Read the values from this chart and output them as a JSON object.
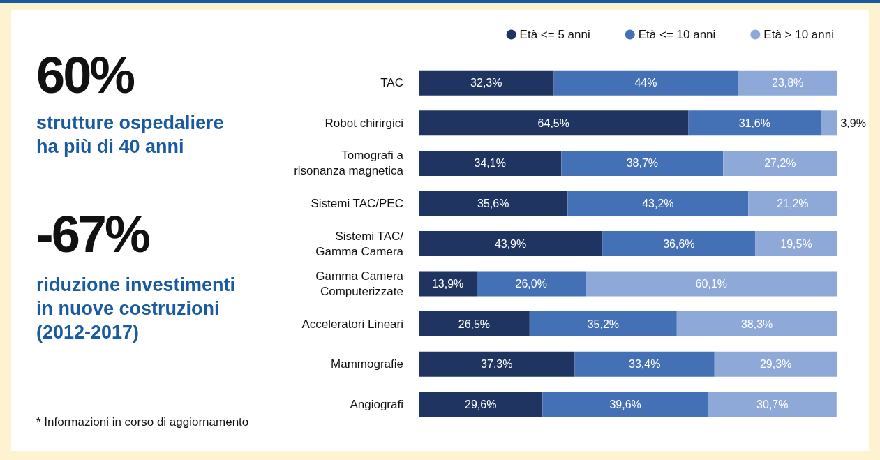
{
  "chart_data": {
    "type": "bar",
    "orientation": "horizontal",
    "stacked": true,
    "legend": "top right",
    "categories": [
      "TAC",
      "Robot chirirgici",
      "Tomografi a\nrisonanza magnetica",
      "Sistemi TAC/PEC",
      "Sistemi TAC/\nGamma Camera",
      "Gamma Camera\nComputerizzate",
      "Acceleratori Lineari",
      "Mammografie",
      "Angiografi"
    ],
    "series": [
      {
        "name": "Età <= 5 anni",
        "color": "#1f3461",
        "values": [
          32.3,
          64.5,
          34.1,
          35.6,
          43.9,
          13.9,
          26.5,
          37.3,
          29.6
        ],
        "value_labels": [
          "32,3%",
          "64,5%",
          "34,1%",
          "35,6%",
          "43,9%",
          "13,9%",
          "26,5%",
          "37,3%",
          "29,6%"
        ]
      },
      {
        "name": "Età <= 10 anni",
        "color": "#4470b5",
        "values": [
          44,
          31.6,
          38.7,
          43.2,
          36.6,
          26.0,
          35.2,
          33.4,
          39.6
        ],
        "value_labels": [
          "44%",
          "31,6%",
          "38,7%",
          "43,2%",
          "36,6%",
          "26,0%",
          "35,2%",
          "33,4%",
          "39,6%"
        ]
      },
      {
        "name": "Età > 10 anni",
        "color": "#8ea9d8",
        "values": [
          23.8,
          3.9,
          27.2,
          21.2,
          19.5,
          60.1,
          38.3,
          29.3,
          30.7
        ],
        "value_labels": [
          "23,8%",
          "3,9%",
          "27,2%",
          "21,2%",
          "19,5%",
          "60,1%",
          "38,3%",
          "29,3%",
          "30,7%"
        ]
      }
    ],
    "annotations": [
      "60%",
      "strutture ospedaliere\nha più di 40 anni",
      "-67%",
      "riduzione investimenti\nin nuove costruzioni\n(2012-2017)",
      "* Informazioni in corso di aggiornamento"
    ]
  }
}
